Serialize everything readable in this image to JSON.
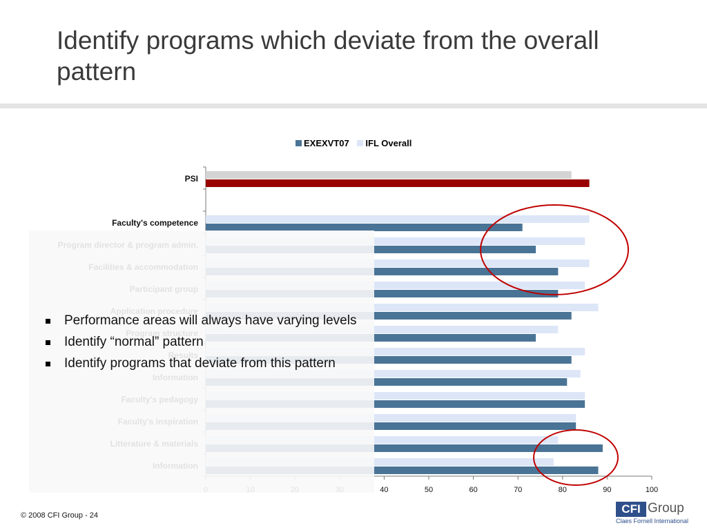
{
  "slide": {
    "title": "Identify programs which deviate from the overall pattern",
    "footer": "© 2008 CFI Group - 24",
    "logo": {
      "mark": "CFI",
      "word": "Group",
      "tagline": "Claes Fornell International"
    }
  },
  "bullets": [
    "Performance areas will always have varying levels",
    "Identify “normal” pattern",
    "Identify programs that deviate from this pattern"
  ],
  "chart_data": {
    "type": "bar",
    "orientation": "horizontal",
    "categories": [
      "PSI",
      "",
      "Faculty's competence",
      "Program director & program admin.",
      "Facilities & accommodation",
      "Participant group",
      "Application procedure",
      "Program structure",
      "Results",
      "Information",
      "Faculty's pedagogy",
      "Faculty's inspiration",
      "Litterature & materials",
      "Information"
    ],
    "series": [
      {
        "name": "EXEXVT07",
        "values": [
          86,
          null,
          71,
          74,
          79,
          79,
          82,
          74,
          82,
          81,
          85,
          83,
          89,
          88
        ]
      },
      {
        "name": "IFL Overall",
        "values": [
          82,
          null,
          86,
          85,
          86,
          85,
          88,
          79,
          85,
          84,
          85,
          83,
          79,
          78
        ]
      }
    ],
    "highlight": {
      "category": "PSI",
      "EXEXVT07": "#990000",
      "IFL Overall": "#d4d4d4"
    },
    "colors": {
      "EXEXVT07": "#4a7496",
      "IFL Overall": "#dce6f7"
    },
    "xlim": [
      0,
      100
    ],
    "xticks": [
      0,
      10,
      20,
      30,
      40,
      50,
      60,
      70,
      80,
      90,
      100
    ],
    "legend_position": "top",
    "annotations": [
      {
        "shape": "circle",
        "color": "#c00000"
      },
      {
        "shape": "circle",
        "color": "#c00000"
      }
    ],
    "grid": false
  }
}
